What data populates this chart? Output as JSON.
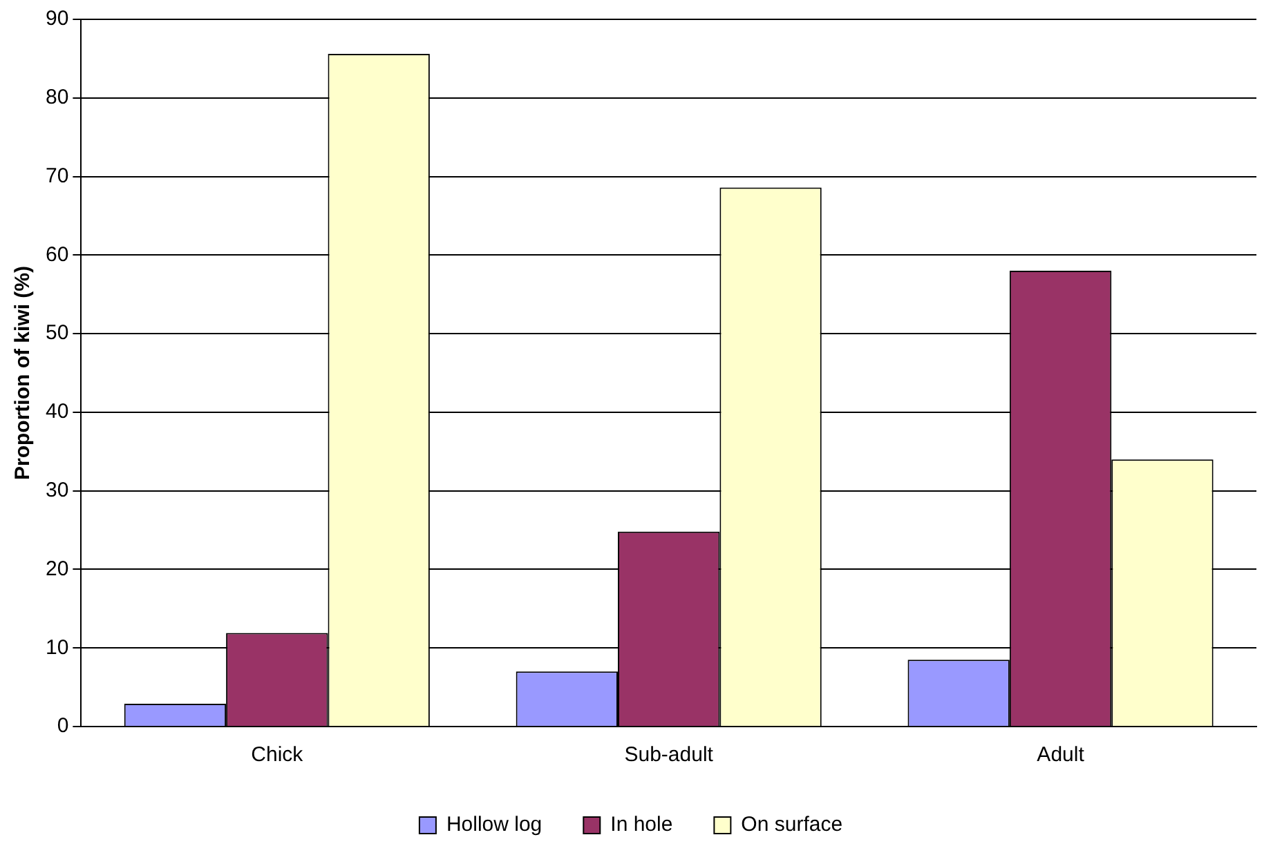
{
  "chart_data": {
    "type": "bar",
    "ylabel": "Proportion of kiwi (%)",
    "categories": [
      "Chick",
      "Sub-adult",
      "Adult"
    ],
    "series": [
      {
        "name": "Hollow log",
        "color": "#9999ff",
        "values": [
          2.9,
          7.0,
          8.5
        ]
      },
      {
        "name": "In hole",
        "color": "#993366",
        "values": [
          11.9,
          24.8,
          58.0
        ]
      },
      {
        "name": "On surface",
        "color": "#ffffcc",
        "values": [
          85.6,
          68.6,
          34.0
        ]
      }
    ],
    "ylim": [
      0,
      90
    ],
    "yticks": [
      0,
      10,
      20,
      30,
      40,
      50,
      60,
      70,
      80,
      90
    ],
    "grid": "y",
    "legend": "bottom"
  }
}
